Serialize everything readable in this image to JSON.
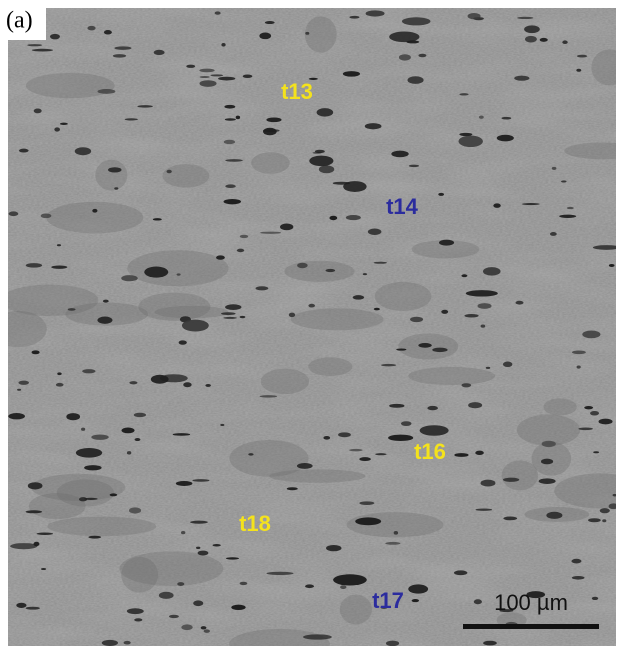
{
  "panel_label": "(a)",
  "labels": [
    {
      "text": "t13"
    },
    {
      "text": "t14"
    },
    {
      "text": "t16"
    },
    {
      "text": "t18"
    },
    {
      "text": "t17"
    }
  ],
  "scale_bar": {
    "label": "100 µm"
  }
}
